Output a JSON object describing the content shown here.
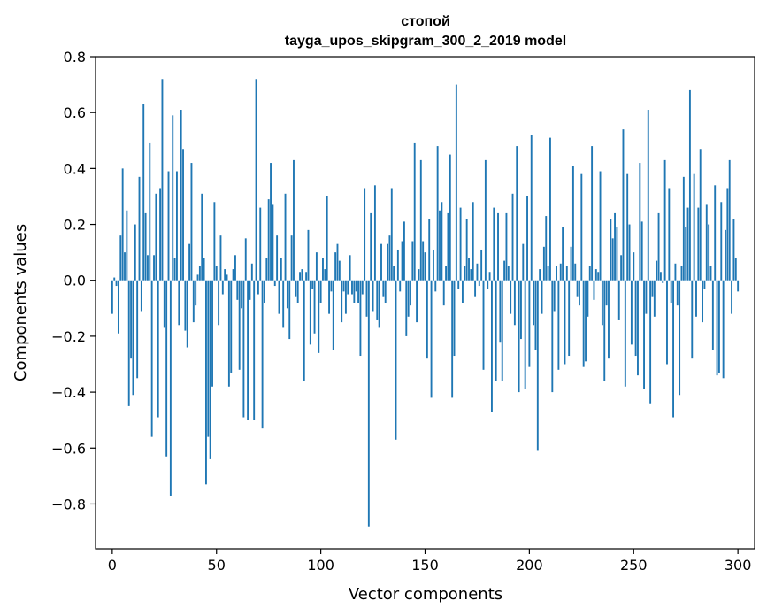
{
  "chart_data": {
    "type": "bar",
    "title_line1": "стопой",
    "title_line2": "tayga_upos_skipgram_300_2_2019 model",
    "xlabel": "Vector components",
    "ylabel": "Components values",
    "xlim": [
      -8,
      308
    ],
    "ylim": [
      -0.96,
      0.8
    ],
    "xticks": [
      0,
      50,
      100,
      150,
      200,
      250,
      300
    ],
    "yticks": [
      -0.8,
      -0.6,
      -0.4,
      -0.2,
      0.0,
      0.2,
      0.4,
      0.6,
      0.8
    ],
    "ytick_labels": [
      "−0.8",
      "−0.6",
      "−0.4",
      "−0.2",
      "0.0",
      "0.2",
      "0.4",
      "0.6",
      "0.8"
    ],
    "bar_color": "#1f77b4",
    "grid": false,
    "values": [
      -0.12,
      0.01,
      -0.02,
      -0.19,
      0.16,
      0.4,
      0.1,
      0.25,
      -0.45,
      -0.28,
      -0.41,
      0.2,
      -0.35,
      0.37,
      -0.11,
      0.63,
      0.24,
      0.09,
      0.49,
      -0.56,
      0.09,
      0.31,
      -0.49,
      0.33,
      0.72,
      -0.17,
      -0.63,
      0.39,
      -0.77,
      0.59,
      0.08,
      0.39,
      -0.16,
      0.61,
      0.47,
      -0.18,
      -0.24,
      0.13,
      0.42,
      -0.15,
      -0.09,
      0.02,
      0.05,
      0.31,
      0.08,
      -0.73,
      -0.56,
      -0.64,
      -0.38,
      0.28,
      0.05,
      -0.16,
      0.16,
      -0.05,
      0.04,
      0.02,
      -0.38,
      -0.33,
      0.04,
      0.09,
      -0.07,
      -0.32,
      -0.1,
      -0.49,
      0.15,
      -0.5,
      -0.07,
      0.06,
      -0.5,
      0.72,
      -0.05,
      0.26,
      -0.53,
      -0.08,
      0.08,
      0.29,
      0.42,
      0.27,
      -0.02,
      0.16,
      -0.12,
      0.08,
      -0.17,
      0.31,
      -0.1,
      -0.21,
      0.16,
      0.43,
      -0.06,
      -0.08,
      0.03,
      0.04,
      -0.36,
      0.03,
      0.18,
      -0.23,
      -0.03,
      -0.19,
      0.1,
      -0.26,
      -0.08,
      0.08,
      0.04,
      0.3,
      -0.12,
      -0.04,
      -0.25,
      0.1,
      0.13,
      0.07,
      -0.15,
      -0.04,
      -0.12,
      -0.05,
      0.09,
      -0.05,
      -0.08,
      -0.04,
      -0.08,
      -0.27,
      -0.05,
      0.33,
      -0.13,
      -0.88,
      0.24,
      -0.11,
      0.34,
      -0.14,
      -0.17,
      0.13,
      -0.06,
      -0.08,
      0.13,
      0.16,
      0.33,
      0.05,
      -0.57,
      0.11,
      -0.04,
      0.14,
      0.21,
      -0.2,
      -0.13,
      -0.09,
      0.14,
      0.49,
      -0.15,
      0.04,
      0.43,
      0.14,
      0.1,
      -0.28,
      0.22,
      -0.42,
      0.11,
      -0.04,
      0.48,
      0.25,
      0.28,
      -0.09,
      0.05,
      0.24,
      0.45,
      -0.42,
      -0.27,
      0.7,
      -0.03,
      0.26,
      -0.08,
      0.05,
      0.22,
      0.08,
      0.04,
      0.28,
      -0.06,
      0.06,
      -0.02,
      0.11,
      -0.32,
      0.43,
      -0.03,
      0.03,
      -0.47,
      0.26,
      -0.36,
      0.24,
      -0.22,
      -0.36,
      0.07,
      0.24,
      0.05,
      -0.12,
      0.31,
      -0.16,
      0.48,
      -0.4,
      -0.21,
      0.13,
      -0.39,
      0.3,
      -0.31,
      0.52,
      -0.16,
      -0.25,
      -0.61,
      0.04,
      -0.12,
      0.12,
      0.23,
      0.05,
      0.51,
      -0.4,
      -0.11,
      0.05,
      -0.32,
      0.06,
      0.19,
      -0.3,
      0.05,
      -0.27,
      0.12,
      0.41,
      0.06,
      -0.06,
      -0.09,
      0.38,
      -0.31,
      -0.29,
      -0.13,
      0.05,
      0.48,
      -0.07,
      0.04,
      0.03,
      0.39,
      -0.16,
      -0.36,
      -0.09,
      -0.28,
      0.22,
      0.15,
      0.24,
      0.19,
      -0.14,
      0.09,
      0.54,
      -0.38,
      0.38,
      0.2,
      -0.23,
      0.1,
      -0.27,
      -0.34,
      0.42,
      0.21,
      -0.39,
      -0.12,
      0.61,
      -0.44,
      -0.06,
      -0.13,
      0.07,
      0.24,
      0.03,
      -0.01,
      0.43,
      -0.3,
      0.33,
      -0.08,
      -0.49,
      0.06,
      -0.09,
      -0.41,
      0.05,
      0.37,
      0.19,
      0.26,
      0.68,
      -0.28,
      0.38,
      -0.13,
      0.26,
      0.47,
      -0.15,
      -0.03,
      0.27,
      0.2,
      0.05,
      -0.25,
      0.34,
      -0.34,
      -0.33,
      0.28,
      -0.35,
      0.18,
      0.33,
      0.43,
      -0.12,
      0.22,
      0.08,
      -0.04
    ]
  }
}
